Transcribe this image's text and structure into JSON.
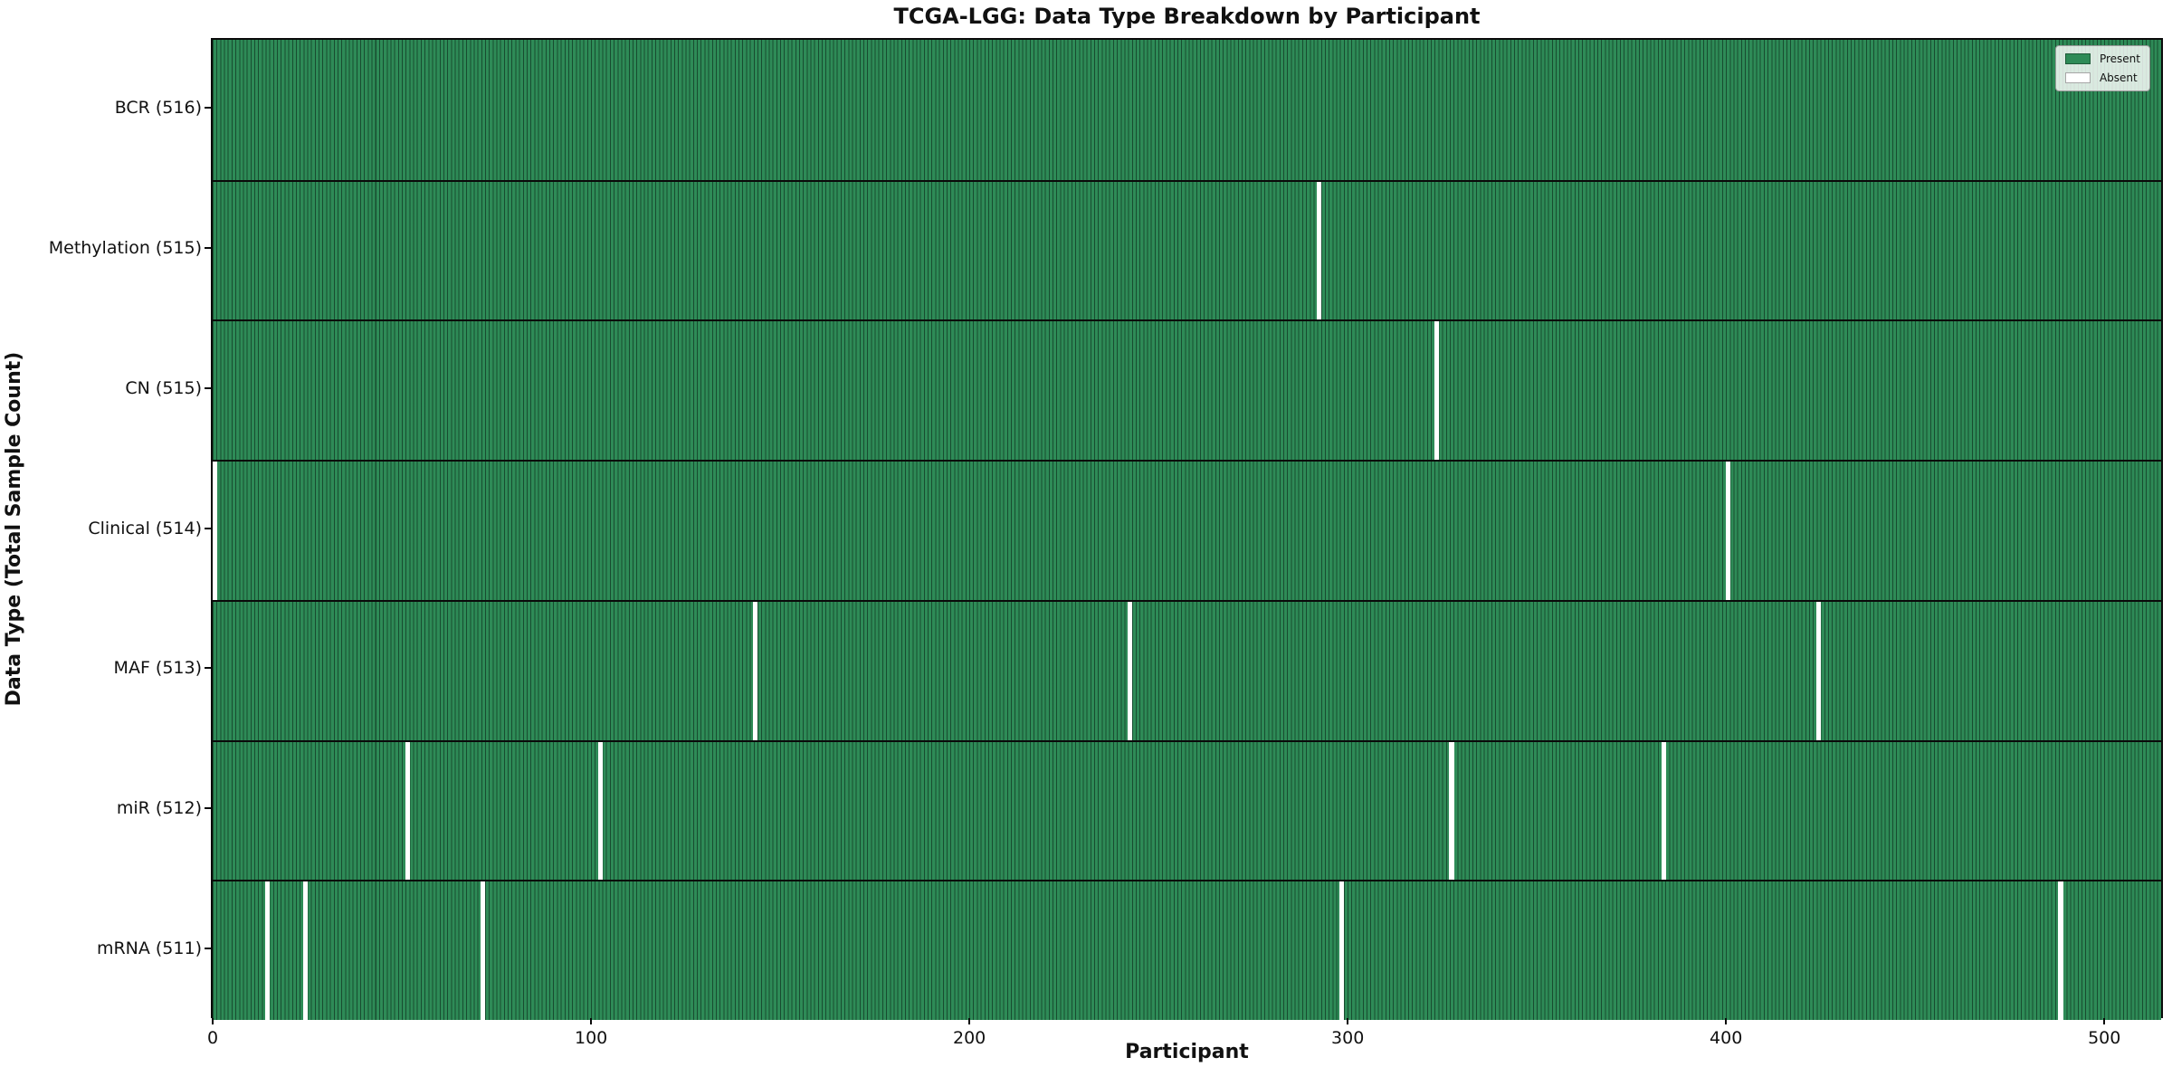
{
  "chart_data": {
    "type": "heatmap",
    "title": "TCGA-LGG: Data Type Breakdown by Participant",
    "xlabel": "Participant",
    "ylabel": "Data Type (Total Sample Count)",
    "n_participants": 516,
    "x_ticks": [
      0,
      100,
      200,
      300,
      400,
      500
    ],
    "xlim": [
      -0.5,
      515.5
    ],
    "grid": false,
    "legend_position": "upper right",
    "legend": [
      {
        "label": "Present",
        "color": "#2e8b57"
      },
      {
        "label": "Absent",
        "color": "#ffffff"
      }
    ],
    "rows": [
      {
        "label": "BCR (516)",
        "data_type": "BCR",
        "total": 516,
        "absent_participants": []
      },
      {
        "label": "Methylation (515)",
        "data_type": "Methylation",
        "total": 515,
        "absent_participants": [
          292
        ]
      },
      {
        "label": "CN (515)",
        "data_type": "CN",
        "total": 515,
        "absent_participants": [
          323
        ]
      },
      {
        "label": "Clinical (514)",
        "data_type": "Clinical",
        "total": 514,
        "absent_participants": [
          0,
          400
        ]
      },
      {
        "label": "MAF (513)",
        "data_type": "MAF",
        "total": 513,
        "absent_participants": [
          143,
          242,
          424
        ]
      },
      {
        "label": "miR (512)",
        "data_type": "miR",
        "total": 512,
        "absent_participants": [
          51,
          102,
          327,
          383
        ]
      },
      {
        "label": "mRNA (511)",
        "data_type": "mRNA",
        "total": 511,
        "absent_participants": [
          14,
          24,
          71,
          298,
          488
        ]
      }
    ],
    "colors": {
      "present": "#2e8b57",
      "absent": "#ffffff",
      "cell_edge": "rgba(5,25,15,0.55)",
      "axis": "#0a0a0a",
      "text": "#111111"
    }
  }
}
